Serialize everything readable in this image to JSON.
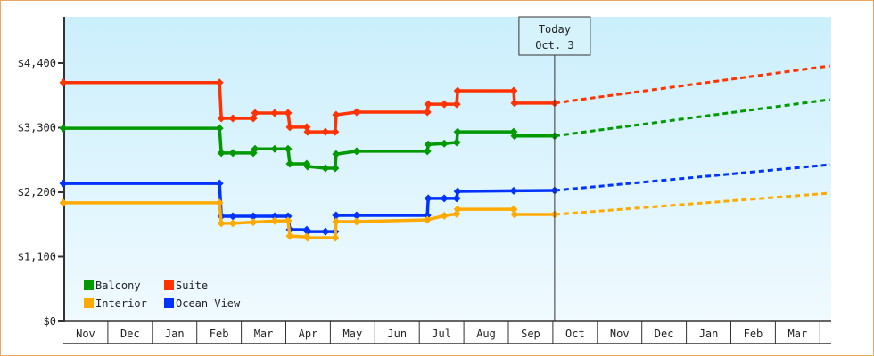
{
  "chart_data": {
    "type": "line",
    "title": "",
    "xlabel": "",
    "ylabel": "",
    "ylim": [
      0,
      4600
    ],
    "yticks": [
      0,
      1100,
      2200,
      3300,
      4400
    ],
    "ytick_labels": [
      "$0",
      "$1,100",
      "$2,200",
      "$3,300",
      "$4,400"
    ],
    "x_unit": "months since Nov 1",
    "xlim": [
      0,
      17.25
    ],
    "month_labels": [
      "Nov",
      "Dec",
      "Jan",
      "Feb",
      "Mar",
      "Apr",
      "May",
      "Jun",
      "Jul",
      "Aug",
      "Sep",
      "Oct",
      "Nov",
      "Dec",
      "Jan",
      "Feb",
      "Mar"
    ],
    "today": {
      "x": 11.04,
      "label_line1": "Today",
      "label_line2": "Oct. 3"
    },
    "legend_position": "bottom-left",
    "series": [
      {
        "name": "Suite",
        "color": "#ff3300",
        "points": [
          [
            0,
            4070
          ],
          [
            3.51,
            4070
          ],
          [
            3.55,
            3460
          ],
          [
            3.81,
            3460
          ],
          [
            4.27,
            3460
          ],
          [
            4.31,
            3550
          ],
          [
            4.75,
            3550
          ],
          [
            5.05,
            3550
          ],
          [
            5.09,
            3310
          ],
          [
            5.47,
            3310
          ],
          [
            5.49,
            3230
          ],
          [
            5.89,
            3230
          ],
          [
            6.11,
            3230
          ],
          [
            6.13,
            3520
          ],
          [
            6.59,
            3565
          ],
          [
            8.18,
            3565
          ],
          [
            8.2,
            3700
          ],
          [
            8.56,
            3700
          ],
          [
            8.84,
            3700
          ],
          [
            8.86,
            3930
          ],
          [
            10.12,
            3930
          ],
          [
            10.14,
            3720
          ],
          [
            11.04,
            3720
          ]
        ],
        "forecast": [
          [
            11.04,
            3720
          ],
          [
            17.23,
            4355
          ]
        ]
      },
      {
        "name": "Balcony",
        "color": "#009900",
        "points": [
          [
            0,
            3290
          ],
          [
            3.51,
            3290
          ],
          [
            3.55,
            2870
          ],
          [
            3.81,
            2870
          ],
          [
            4.27,
            2870
          ],
          [
            4.31,
            2940
          ],
          [
            4.75,
            2940
          ],
          [
            5.05,
            2940
          ],
          [
            5.09,
            2685
          ],
          [
            5.47,
            2685
          ],
          [
            5.49,
            2640
          ],
          [
            5.89,
            2610
          ],
          [
            6.11,
            2610
          ],
          [
            6.13,
            2850
          ],
          [
            6.59,
            2900
          ],
          [
            8.18,
            2900
          ],
          [
            8.2,
            3015
          ],
          [
            8.56,
            3030
          ],
          [
            8.84,
            3050
          ],
          [
            8.86,
            3230
          ],
          [
            10.12,
            3230
          ],
          [
            10.14,
            3160
          ],
          [
            11.04,
            3160
          ]
        ],
        "forecast": [
          [
            11.04,
            3160
          ],
          [
            17.23,
            3780
          ]
        ]
      },
      {
        "name": "Ocean View",
        "color": "#0033ff",
        "points": [
          [
            0,
            2350
          ],
          [
            3.51,
            2350
          ],
          [
            3.55,
            1790
          ],
          [
            3.81,
            1790
          ],
          [
            4.27,
            1790
          ],
          [
            4.75,
            1790
          ],
          [
            5.05,
            1790
          ],
          [
            5.09,
            1565
          ],
          [
            5.47,
            1560
          ],
          [
            5.49,
            1530
          ],
          [
            5.89,
            1530
          ],
          [
            6.11,
            1530
          ],
          [
            6.13,
            1805
          ],
          [
            6.59,
            1805
          ],
          [
            8.18,
            1805
          ],
          [
            8.2,
            2095
          ],
          [
            8.56,
            2095
          ],
          [
            8.84,
            2095
          ],
          [
            8.86,
            2215
          ],
          [
            10.12,
            2225
          ],
          [
            11.04,
            2230
          ]
        ],
        "forecast": [
          [
            11.04,
            2230
          ],
          [
            17.23,
            2670
          ]
        ]
      },
      {
        "name": "Interior",
        "color": "#ffaa00",
        "points": [
          [
            0,
            2020
          ],
          [
            3.51,
            2020
          ],
          [
            3.55,
            1670
          ],
          [
            3.81,
            1670
          ],
          [
            4.27,
            1690
          ],
          [
            4.75,
            1710
          ],
          [
            5.05,
            1715
          ],
          [
            5.09,
            1455
          ],
          [
            5.47,
            1440
          ],
          [
            5.49,
            1425
          ],
          [
            6.11,
            1425
          ],
          [
            6.13,
            1700
          ],
          [
            6.59,
            1700
          ],
          [
            8.18,
            1730
          ],
          [
            8.56,
            1800
          ],
          [
            8.84,
            1830
          ],
          [
            8.86,
            1910
          ],
          [
            10.12,
            1910
          ],
          [
            10.14,
            1820
          ],
          [
            11.04,
            1820
          ]
        ],
        "forecast": [
          [
            11.04,
            1820
          ],
          [
            17.23,
            2185
          ]
        ]
      }
    ],
    "legend": [
      {
        "name": "Balcony",
        "color": "#009900"
      },
      {
        "name": "Suite",
        "color": "#ff3300"
      },
      {
        "name": "Interior",
        "color": "#ffaa00"
      },
      {
        "name": "Ocean View",
        "color": "#0033ff"
      }
    ]
  }
}
